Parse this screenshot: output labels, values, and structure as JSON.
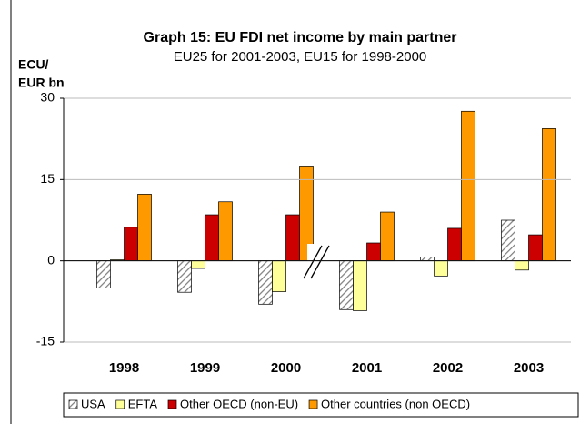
{
  "chart_data": {
    "type": "bar",
    "title": "Graph 15: EU FDI net income by main partner",
    "subtitle": "EU25 for 2001-2003, EU15 for 1998-2000",
    "ylabel": [
      "ECU/",
      "EUR bn"
    ],
    "categories": [
      "1998",
      "1999",
      "2000",
      "2001",
      "2002",
      "2003"
    ],
    "series": [
      {
        "name": "USA",
        "color": "#808080",
        "values": [
          -5,
          -5.8,
          -8,
          -9,
          0.7,
          7.5
        ]
      },
      {
        "name": "EFTA",
        "color": "#ffff99",
        "values": [
          0.2,
          -1.4,
          -5.7,
          -9.2,
          -2.8,
          -1.7
        ]
      },
      {
        "name": "Other OECD (non-EU)",
        "color": "#cc0000",
        "values": [
          6.2,
          8.5,
          8.5,
          3.3,
          6,
          4.8
        ]
      },
      {
        "name": "Other countries (non OECD)",
        "color": "#ff9900",
        "values": [
          12.3,
          10.9,
          17.5,
          9,
          27.6,
          24.4
        ]
      }
    ],
    "ylim": [
      -15,
      30
    ],
    "yticks": [
      -15,
      0,
      15,
      30
    ],
    "grid": true,
    "legend": "bottom"
  }
}
